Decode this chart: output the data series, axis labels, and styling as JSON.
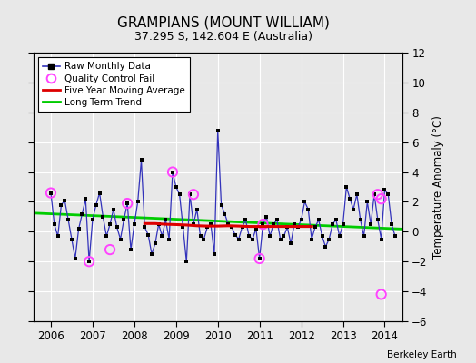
{
  "title": "GRAMPIANS (MOUNT WILLIAM)",
  "subtitle": "37.295 S, 142.604 E (Australia)",
  "ylabel": "Temperature Anomaly (°C)",
  "attribution": "Berkeley Earth",
  "ylim": [
    -6,
    12
  ],
  "yticks": [
    -6,
    -4,
    -2,
    0,
    2,
    4,
    6,
    8,
    10,
    12
  ],
  "xlim": [
    2005.58,
    2014.42
  ],
  "xticks": [
    2006,
    2007,
    2008,
    2009,
    2010,
    2011,
    2012,
    2013,
    2014
  ],
  "bg_color": "#e8e8e8",
  "grid_color": "#ffffff",
  "raw_color": "#3333bb",
  "dot_color": "#000000",
  "qc_color": "#ff44ff",
  "ma_color": "#dd0000",
  "trend_color": "#00cc00",
  "raw_x": [
    2006.0,
    2006.083,
    2006.167,
    2006.25,
    2006.333,
    2006.417,
    2006.5,
    2006.583,
    2006.667,
    2006.75,
    2006.833,
    2006.917,
    2007.0,
    2007.083,
    2007.167,
    2007.25,
    2007.333,
    2007.417,
    2007.5,
    2007.583,
    2007.667,
    2007.75,
    2007.833,
    2007.917,
    2008.0,
    2008.083,
    2008.167,
    2008.25,
    2008.333,
    2008.417,
    2008.5,
    2008.583,
    2008.667,
    2008.75,
    2008.833,
    2008.917,
    2009.0,
    2009.083,
    2009.167,
    2009.25,
    2009.333,
    2009.417,
    2009.5,
    2009.583,
    2009.667,
    2009.75,
    2009.833,
    2009.917,
    2010.0,
    2010.083,
    2010.167,
    2010.25,
    2010.333,
    2010.417,
    2010.5,
    2010.583,
    2010.667,
    2010.75,
    2010.833,
    2010.917,
    2011.0,
    2011.083,
    2011.167,
    2011.25,
    2011.333,
    2011.417,
    2011.5,
    2011.583,
    2011.667,
    2011.75,
    2011.833,
    2011.917,
    2012.0,
    2012.083,
    2012.167,
    2012.25,
    2012.333,
    2012.417,
    2012.5,
    2012.583,
    2012.667,
    2012.75,
    2012.833,
    2012.917,
    2013.0,
    2013.083,
    2013.167,
    2013.25,
    2013.333,
    2013.417,
    2013.5,
    2013.583,
    2013.667,
    2013.75,
    2013.833,
    2013.917,
    2014.0,
    2014.083,
    2014.167,
    2014.25
  ],
  "raw_y": [
    2.6,
    0.5,
    -0.3,
    1.8,
    2.1,
    0.8,
    -0.5,
    -1.8,
    0.2,
    1.2,
    2.2,
    -2.0,
    0.8,
    1.8,
    2.6,
    1.0,
    -0.3,
    0.5,
    1.5,
    0.3,
    -0.5,
    0.8,
    1.9,
    -1.2,
    0.5,
    2.0,
    4.8,
    0.3,
    -0.2,
    -1.5,
    -0.8,
    0.5,
    -0.3,
    0.8,
    -0.5,
    4.0,
    3.0,
    2.5,
    0.3,
    -2.0,
    2.5,
    0.5,
    1.5,
    -0.3,
    -0.5,
    0.3,
    0.5,
    -1.5,
    6.8,
    1.8,
    1.2,
    0.5,
    0.3,
    -0.2,
    -0.5,
    0.3,
    0.8,
    -0.3,
    -0.5,
    0.2,
    -1.8,
    0.5,
    1.0,
    -0.3,
    0.5,
    0.8,
    -0.5,
    -0.3,
    0.3,
    -0.8,
    0.5,
    0.3,
    0.8,
    2.0,
    1.5,
    -0.5,
    0.3,
    0.8,
    -0.3,
    -1.0,
    -0.5,
    0.5,
    0.8,
    -0.3,
    0.5,
    3.0,
    2.2,
    1.5,
    2.5,
    0.8,
    -0.3,
    2.0,
    0.5,
    2.5,
    0.8,
    -0.5,
    2.8,
    2.5,
    0.5,
    -0.3
  ],
  "qc_fail_x": [
    2006.0,
    2006.917,
    2007.417,
    2007.833,
    2008.917,
    2009.417,
    2011.0,
    2011.083,
    2013.833,
    2013.917,
    2013.917
  ],
  "qc_fail_y": [
    2.6,
    -2.0,
    -1.2,
    1.9,
    4.0,
    2.5,
    -1.8,
    0.5,
    2.5,
    2.2,
    -4.2
  ],
  "ma_x": [
    2008.25,
    2008.5,
    2008.75,
    2009.0,
    2009.25,
    2009.5,
    2009.75,
    2010.0,
    2010.25,
    2010.5,
    2010.75,
    2011.0,
    2011.25,
    2011.5,
    2011.75,
    2012.0,
    2012.25
  ],
  "ma_y": [
    0.55,
    0.55,
    0.5,
    0.48,
    0.45,
    0.4,
    0.38,
    0.38,
    0.4,
    0.38,
    0.35,
    0.35,
    0.35,
    0.35,
    0.35,
    0.35,
    0.35
  ],
  "trend_x": [
    2005.58,
    2014.42
  ],
  "trend_y": [
    1.25,
    0.18
  ]
}
